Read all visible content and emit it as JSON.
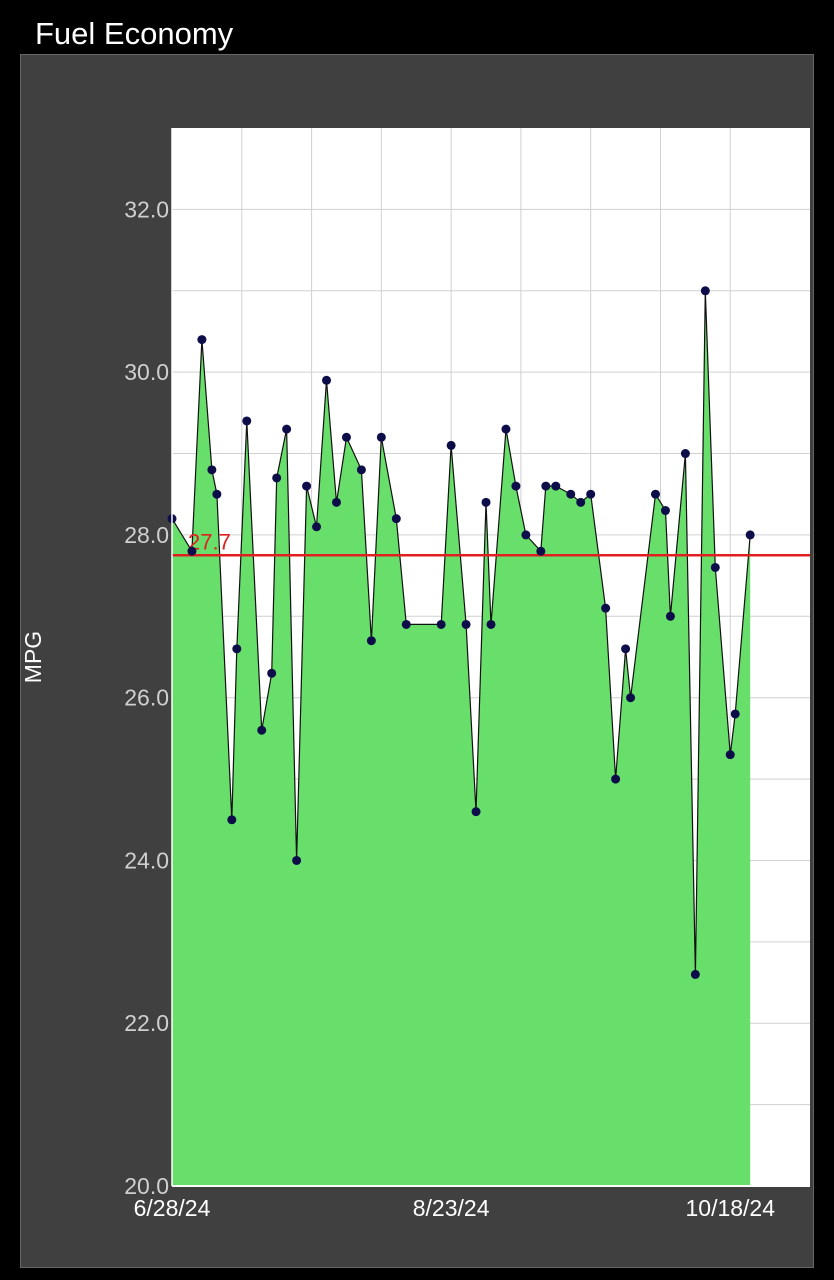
{
  "app": {
    "title": "Fuel Economy"
  },
  "colors": {
    "background": "#000000",
    "panel": "#404040",
    "plot_area": "#ffffff",
    "fill": "#68df6b",
    "line": "#111111",
    "point": "#0d0d4a",
    "grid": "#d0d0d0",
    "average_line": "#e02020"
  },
  "chart_data": {
    "type": "area",
    "title": "",
    "xlabel": "",
    "ylabel": "MPG",
    "ylim": [
      20.0,
      33.0
    ],
    "y_ticks": [
      "20.0",
      "22.0",
      "24.0",
      "26.0",
      "28.0",
      "30.0",
      "32.0"
    ],
    "y_tick_values": [
      20,
      22,
      24,
      26,
      28,
      30,
      32
    ],
    "y_grid_values": [
      21,
      23,
      25,
      27,
      29,
      31
    ],
    "xlim": [
      "2024-06-28",
      "2024-11-03"
    ],
    "x_ticks": [
      {
        "date": "2024-06-28",
        "label": "6/28/24"
      },
      {
        "date": "2024-08-23",
        "label": "8/23/24"
      },
      {
        "date": "2024-10-18",
        "label": "10/18/24"
      }
    ],
    "x_grid_dates": [
      "2024-07-12",
      "2024-07-26",
      "2024-08-09",
      "2024-09-06",
      "2024-09-20",
      "2024-10-04"
    ],
    "grid": true,
    "average": {
      "value": 27.75,
      "label": "27.7"
    },
    "series": [
      {
        "points": [
          [
            "2024-06-28",
            28.2
          ],
          [
            "2024-07-02",
            27.8
          ],
          [
            "2024-07-04",
            30.4
          ],
          [
            "2024-07-06",
            28.8
          ],
          [
            "2024-07-07",
            28.5
          ],
          [
            "2024-07-10",
            24.5
          ],
          [
            "2024-07-11",
            26.6
          ],
          [
            "2024-07-13",
            29.4
          ],
          [
            "2024-07-16",
            25.6
          ],
          [
            "2024-07-18",
            26.3
          ],
          [
            "2024-07-19",
            28.7
          ],
          [
            "2024-07-21",
            29.3
          ],
          [
            "2024-07-23",
            24.0
          ],
          [
            "2024-07-25",
            28.6
          ],
          [
            "2024-07-27",
            28.1
          ],
          [
            "2024-07-29",
            29.9
          ],
          [
            "2024-07-31",
            28.4
          ],
          [
            "2024-08-02",
            29.2
          ],
          [
            "2024-08-05",
            28.8
          ],
          [
            "2024-08-07",
            26.7
          ],
          [
            "2024-08-09",
            29.2
          ],
          [
            "2024-08-12",
            28.2
          ],
          [
            "2024-08-14",
            26.9
          ],
          [
            "2024-08-21",
            26.9
          ],
          [
            "2024-08-23",
            29.1
          ],
          [
            "2024-08-26",
            26.9
          ],
          [
            "2024-08-28",
            24.6
          ],
          [
            "2024-08-30",
            28.4
          ],
          [
            "2024-08-31",
            26.9
          ],
          [
            "2024-09-03",
            29.3
          ],
          [
            "2024-09-05",
            28.6
          ],
          [
            "2024-09-07",
            28.0
          ],
          [
            "2024-09-10",
            27.8
          ],
          [
            "2024-09-11",
            28.6
          ],
          [
            "2024-09-13",
            28.6
          ],
          [
            "2024-09-16",
            28.5
          ],
          [
            "2024-09-18",
            28.4
          ],
          [
            "2024-09-20",
            28.5
          ],
          [
            "2024-09-23",
            27.1
          ],
          [
            "2024-09-25",
            25.0
          ],
          [
            "2024-09-27",
            26.6
          ],
          [
            "2024-09-28",
            26.0
          ],
          [
            "2024-10-03",
            28.5
          ],
          [
            "2024-10-05",
            28.3
          ],
          [
            "2024-10-06",
            27.0
          ],
          [
            "2024-10-09",
            29.0
          ],
          [
            "2024-10-11",
            22.6
          ],
          [
            "2024-10-13",
            31.0
          ],
          [
            "2024-10-15",
            27.6
          ],
          [
            "2024-10-18",
            25.3
          ],
          [
            "2024-10-19",
            25.8
          ],
          [
            "2024-10-22",
            28.0
          ]
        ]
      }
    ]
  }
}
